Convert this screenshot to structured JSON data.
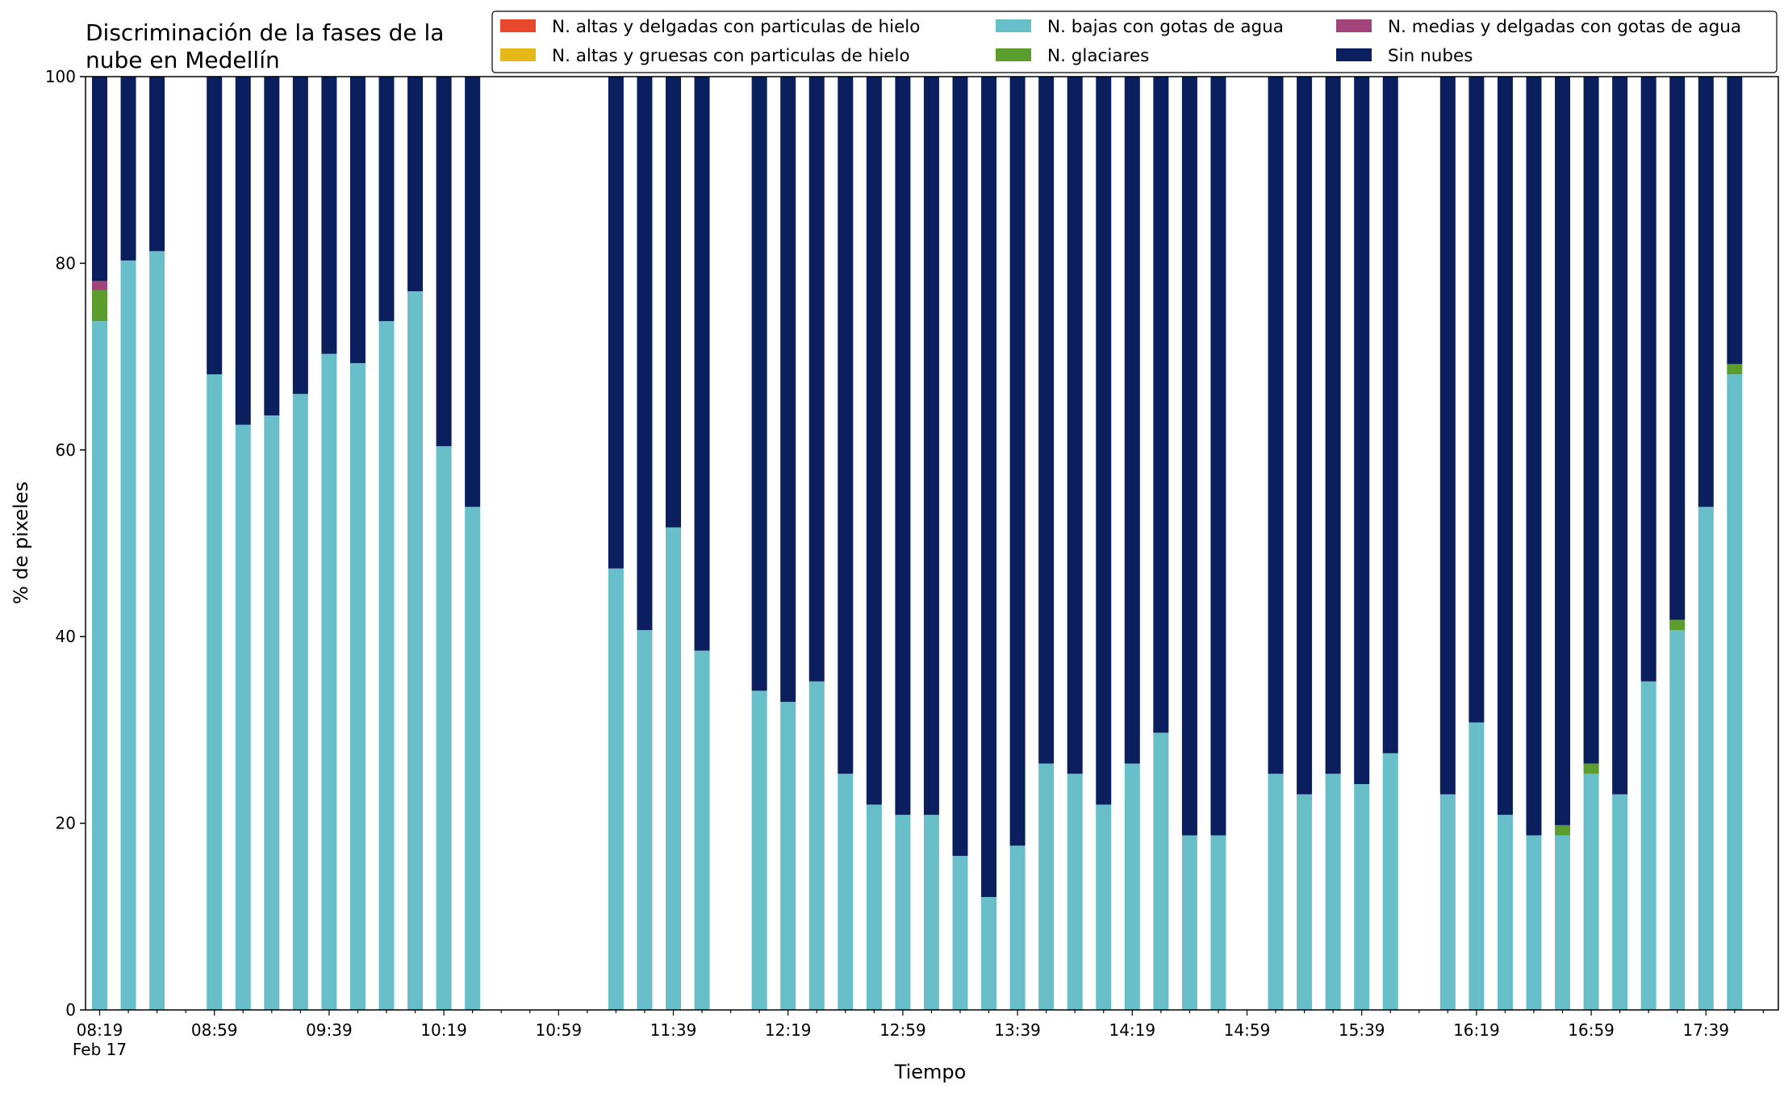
{
  "chart_data": {
    "type": "bar",
    "stacked": true,
    "title": "Discriminación de la fases de la nube en Medellín",
    "title_lines": [
      "Discriminación de la fases de la",
      "nube en Medellín"
    ],
    "xlabel": "Tiempo",
    "ylabel": "% de pixeles",
    "ylim": [
      0,
      100
    ],
    "yticks": [
      0,
      20,
      40,
      60,
      80,
      100
    ],
    "x_interval_minutes": 10,
    "x_start": "2017-02-17 08:19",
    "x_tick_labels": [
      "08:19",
      "08:59",
      "09:39",
      "10:19",
      "10:59",
      "11:39",
      "12:19",
      "12:59",
      "13:39",
      "14:19",
      "14:59",
      "15:39",
      "16:19",
      "16:59",
      "17:39"
    ],
    "x_tick_sublabel": "Feb 17",
    "grid": false,
    "legend_position": "top-right",
    "categories": [
      "08:19",
      "08:29",
      "08:39",
      "08:49",
      "08:59",
      "09:09",
      "09:19",
      "09:29",
      "09:39",
      "09:49",
      "09:59",
      "10:09",
      "10:19",
      "10:29",
      "10:39",
      "10:49",
      "10:59",
      "11:09",
      "11:19",
      "11:29",
      "11:39",
      "11:49",
      "11:59",
      "12:09",
      "12:19",
      "12:29",
      "12:39",
      "12:49",
      "12:59",
      "13:09",
      "13:19",
      "13:29",
      "13:39",
      "13:49",
      "13:59",
      "14:09",
      "14:19",
      "14:29",
      "14:39",
      "14:49",
      "14:59",
      "15:09",
      "15:19",
      "15:29",
      "15:39",
      "15:49",
      "15:59",
      "16:09",
      "16:19",
      "16:29",
      "16:39",
      "16:49",
      "16:59",
      "17:09",
      "17:19",
      "17:29",
      "17:39",
      "17:49"
    ],
    "series": [
      {
        "name": "N. altas y delgadas con particulas de hielo",
        "color": "#e8482c",
        "values": [
          0,
          0,
          0,
          null,
          0,
          0,
          0,
          0,
          0,
          0,
          0,
          0,
          0,
          0,
          null,
          null,
          null,
          null,
          0,
          0,
          0,
          0,
          null,
          0,
          0,
          0,
          0,
          0,
          0,
          0,
          0,
          0,
          0,
          0,
          0,
          0,
          0,
          0,
          0,
          0,
          null,
          0,
          0,
          0,
          0,
          0,
          null,
          0,
          0,
          0,
          0,
          0,
          0,
          0,
          0,
          0,
          0,
          0
        ]
      },
      {
        "name": "N. altas y gruesas con particulas de hielo",
        "color": "#e6b918",
        "values": [
          0,
          0,
          0,
          null,
          0,
          0,
          0,
          0,
          0,
          0,
          0,
          0,
          0,
          0,
          null,
          null,
          null,
          null,
          0,
          0,
          0,
          0,
          null,
          0,
          0,
          0,
          0,
          0,
          0,
          0,
          0,
          0,
          0,
          0,
          0,
          0,
          0,
          0,
          0,
          0,
          null,
          0,
          0,
          0,
          0,
          0,
          null,
          0,
          0,
          0,
          0,
          0,
          0,
          0,
          0,
          0,
          0,
          0
        ]
      },
      {
        "name": "N. bajas con gotas de agua",
        "color": "#68bfca",
        "values": [
          73.8,
          80.3,
          81.3,
          null,
          68.1,
          62.7,
          63.7,
          66.0,
          70.3,
          69.3,
          73.8,
          77.0,
          60.4,
          53.9,
          null,
          null,
          null,
          null,
          47.3,
          40.7,
          51.7,
          38.5,
          null,
          34.2,
          33.0,
          35.2,
          25.3,
          22.0,
          20.9,
          20.9,
          16.5,
          12.1,
          17.6,
          26.4,
          25.3,
          22.0,
          26.4,
          29.7,
          18.7,
          18.7,
          null,
          25.3,
          23.1,
          25.3,
          24.2,
          27.5,
          null,
          23.1,
          30.8,
          20.9,
          18.7,
          18.7,
          25.3,
          23.1,
          35.2,
          40.7,
          53.9,
          68.1
        ]
      },
      {
        "name": "N. glaciares",
        "color": "#5c9e2e",
        "values": [
          3.3,
          0,
          0,
          null,
          0,
          0,
          0,
          0,
          0,
          0,
          0,
          0,
          0,
          0,
          null,
          null,
          null,
          null,
          0,
          0,
          0,
          0,
          null,
          0,
          0,
          0,
          0,
          0,
          0,
          0,
          0,
          0,
          0,
          0,
          0,
          0,
          0,
          0,
          0,
          0,
          null,
          0,
          0,
          0,
          0,
          0,
          null,
          0,
          0,
          0,
          0,
          1.1,
          1.1,
          0,
          0,
          1.1,
          0,
          1.1
        ]
      },
      {
        "name": "N. medias y delgadas con gotas de agua",
        "color": "#a2447a",
        "values": [
          1.0,
          0,
          0,
          null,
          0,
          0,
          0,
          0,
          0,
          0,
          0,
          0,
          0,
          0,
          null,
          null,
          null,
          null,
          0,
          0,
          0,
          0,
          null,
          0,
          0,
          0,
          0,
          0,
          0,
          0,
          0,
          0,
          0,
          0,
          0,
          0,
          0,
          0,
          0,
          0,
          null,
          0,
          0,
          0,
          0,
          0,
          null,
          0,
          0,
          0,
          0,
          0,
          0,
          0,
          0,
          0,
          0,
          0
        ]
      },
      {
        "name": "Sin nubes",
        "color": "#0b1f5e",
        "values": [
          21.9,
          19.7,
          18.7,
          null,
          31.9,
          37.3,
          36.3,
          34.0,
          29.7,
          30.7,
          26.2,
          23.0,
          39.6,
          46.1,
          null,
          null,
          null,
          null,
          52.7,
          59.3,
          48.3,
          61.5,
          null,
          65.8,
          67.0,
          64.8,
          74.7,
          78.0,
          79.1,
          79.1,
          83.5,
          87.9,
          82.4,
          73.6,
          74.7,
          78.0,
          73.6,
          70.3,
          81.3,
          81.3,
          null,
          74.7,
          76.9,
          74.7,
          75.8,
          72.5,
          null,
          76.9,
          69.2,
          79.1,
          81.3,
          80.2,
          73.6,
          76.9,
          64.8,
          58.2,
          46.1,
          30.8
        ]
      }
    ],
    "legend_order": [
      "N. altas y delgadas con particulas de hielo",
      "N. altas y gruesas con particulas de hielo",
      "N. bajas con gotas de agua",
      "N. glaciares",
      "N. medias y delgadas con gotas de agua",
      "Sin nubes"
    ]
  }
}
